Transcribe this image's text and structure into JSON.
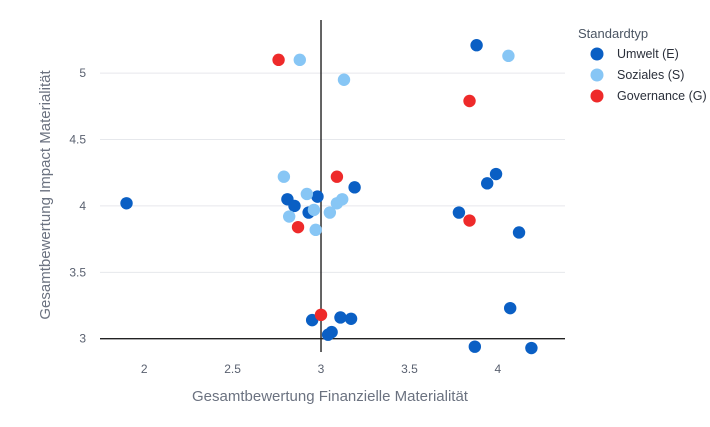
{
  "chart_data": {
    "type": "scatter",
    "title": "",
    "xlabel": "Gesamtbewertung Finanzielle Materialität",
    "ylabel": "Gesamtbewertung Impact Materialität",
    "xlim": [
      1.75,
      4.38
    ],
    "ylim": [
      2.9,
      5.4
    ],
    "xticks": [
      {
        "value": 2,
        "label": "2"
      },
      {
        "value": 2.5,
        "label": "2.5"
      },
      {
        "value": 3,
        "label": "3"
      },
      {
        "value": 3.5,
        "label": "3.5"
      },
      {
        "value": 4,
        "label": "4"
      }
    ],
    "yticks": [
      {
        "value": 3,
        "label": "3"
      },
      {
        "value": 3.5,
        "label": "3.5"
      },
      {
        "value": 4,
        "label": "4"
      },
      {
        "value": 4.5,
        "label": "4.5"
      },
      {
        "value": 5,
        "label": "5"
      }
    ],
    "reference_lines": {
      "x": 3,
      "y": 3
    },
    "grid": "horizontal",
    "legend": {
      "title": "Standardtyp",
      "position": "top-right"
    },
    "series": [
      {
        "name": "Umwelt (E)",
        "color": "#0a5fc4",
        "points": [
          {
            "x": 1.9,
            "y": 4.02
          },
          {
            "x": 2.81,
            "y": 4.05
          },
          {
            "x": 2.85,
            "y": 4.0
          },
          {
            "x": 2.93,
            "y": 3.95
          },
          {
            "x": 2.98,
            "y": 4.07
          },
          {
            "x": 3.19,
            "y": 4.14
          },
          {
            "x": 2.95,
            "y": 3.14
          },
          {
            "x": 3.11,
            "y": 3.16
          },
          {
            "x": 3.17,
            "y": 3.15
          },
          {
            "x": 3.04,
            "y": 3.03
          },
          {
            "x": 3.06,
            "y": 3.05
          },
          {
            "x": 3.88,
            "y": 5.21
          },
          {
            "x": 3.78,
            "y": 3.95
          },
          {
            "x": 3.94,
            "y": 4.17
          },
          {
            "x": 3.99,
            "y": 4.24
          },
          {
            "x": 4.12,
            "y": 3.8
          },
          {
            "x": 4.07,
            "y": 3.23
          },
          {
            "x": 3.87,
            "y": 2.94
          },
          {
            "x": 4.19,
            "y": 2.93
          }
        ]
      },
      {
        "name": "Soziales (S)",
        "color": "#87c6f5",
        "points": [
          {
            "x": 2.88,
            "y": 5.1
          },
          {
            "x": 3.13,
            "y": 4.95
          },
          {
            "x": 2.79,
            "y": 4.22
          },
          {
            "x": 2.92,
            "y": 4.09
          },
          {
            "x": 2.96,
            "y": 3.97
          },
          {
            "x": 2.82,
            "y": 3.92
          },
          {
            "x": 2.97,
            "y": 3.82
          },
          {
            "x": 3.05,
            "y": 3.95
          },
          {
            "x": 3.09,
            "y": 4.02
          },
          {
            "x": 3.12,
            "y": 4.05
          },
          {
            "x": 4.06,
            "y": 5.13
          }
        ]
      },
      {
        "name": "Governance (G)",
        "color": "#ee2a2a",
        "points": [
          {
            "x": 2.76,
            "y": 5.1
          },
          {
            "x": 2.87,
            "y": 3.84
          },
          {
            "x": 3.09,
            "y": 4.22
          },
          {
            "x": 3.0,
            "y": 3.18
          },
          {
            "x": 3.84,
            "y": 4.79
          },
          {
            "x": 3.84,
            "y": 3.89
          }
        ]
      }
    ]
  }
}
